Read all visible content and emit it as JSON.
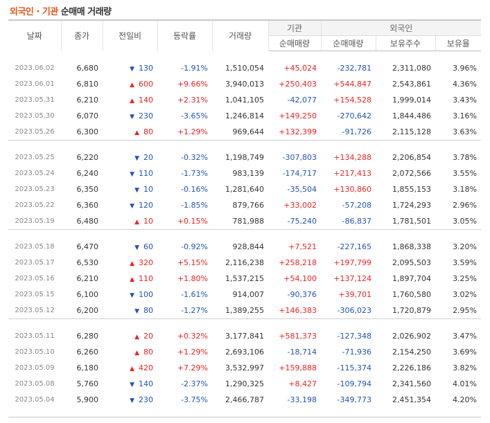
{
  "title": {
    "part1": "외국인 · 기관",
    "part2": "순매매 거래량"
  },
  "headers": {
    "date": "날짜",
    "close": "종가",
    "change": "전일비",
    "rate": "등락률",
    "volume": "거래량",
    "inst_group": "기관",
    "inst_net": "순매매량",
    "foreign_group": "외국인",
    "foreign_net": "순매매량",
    "foreign_hold": "보유주수",
    "foreign_ratio": "보유율"
  },
  "groups": [
    {
      "rows": [
        {
          "date": "2023.06.02",
          "close": "6,680",
          "dir": "down",
          "change": "130",
          "rate": "-1.91%",
          "volume": "1,510,054",
          "inst": "+45,024",
          "foreign": "-232,781",
          "hold": "2,311,080",
          "ratio": "3.96%"
        },
        {
          "date": "2023.06.01",
          "close": "6,810",
          "dir": "up",
          "change": "600",
          "rate": "+9.66%",
          "volume": "3,940,013",
          "inst": "+250,403",
          "foreign": "+544,847",
          "hold": "2,543,861",
          "ratio": "4.36%"
        },
        {
          "date": "2023.05.31",
          "close": "6,210",
          "dir": "up",
          "change": "140",
          "rate": "+2.31%",
          "volume": "1,041,105",
          "inst": "-42,077",
          "foreign": "+154,528",
          "hold": "1,999,014",
          "ratio": "3.43%"
        },
        {
          "date": "2023.05.30",
          "close": "6,070",
          "dir": "down",
          "change": "230",
          "rate": "-3.65%",
          "volume": "1,246,814",
          "inst": "+149,250",
          "foreign": "-270,642",
          "hold": "1,844,486",
          "ratio": "3.16%"
        },
        {
          "date": "2023.05.26",
          "close": "6,300",
          "dir": "up",
          "change": "80",
          "rate": "+1.29%",
          "volume": "969,644",
          "inst": "+132,399",
          "foreign": "-91,726",
          "hold": "2,115,128",
          "ratio": "3.63%"
        }
      ]
    },
    {
      "rows": [
        {
          "date": "2023.05.25",
          "close": "6,220",
          "dir": "down",
          "change": "20",
          "rate": "-0.32%",
          "volume": "1,198,749",
          "inst": "-307,803",
          "foreign": "+134,288",
          "hold": "2,206,854",
          "ratio": "3.78%"
        },
        {
          "date": "2023.05.24",
          "close": "6,240",
          "dir": "down",
          "change": "110",
          "rate": "-1.73%",
          "volume": "983,139",
          "inst": "-174,717",
          "foreign": "+217,413",
          "hold": "2,072,566",
          "ratio": "3.55%"
        },
        {
          "date": "2023.05.23",
          "close": "6,350",
          "dir": "down",
          "change": "10",
          "rate": "-0.16%",
          "volume": "1,281,640",
          "inst": "-35,504",
          "foreign": "+130,860",
          "hold": "1,855,153",
          "ratio": "3.18%"
        },
        {
          "date": "2023.05.22",
          "close": "6,360",
          "dir": "down",
          "change": "120",
          "rate": "-1.85%",
          "volume": "879,766",
          "inst": "+33,002",
          "foreign": "-57,208",
          "hold": "1,724,293",
          "ratio": "2.96%"
        },
        {
          "date": "2023.05.19",
          "close": "6,480",
          "dir": "up",
          "change": "10",
          "rate": "+0.15%",
          "volume": "781,988",
          "inst": "-75,240",
          "foreign": "-86,837",
          "hold": "1,781,501",
          "ratio": "3.05%"
        }
      ]
    },
    {
      "rows": [
        {
          "date": "2023.05.18",
          "close": "6,470",
          "dir": "down",
          "change": "60",
          "rate": "-0.92%",
          "volume": "928,844",
          "inst": "+7,521",
          "foreign": "-227,165",
          "hold": "1,868,338",
          "ratio": "3.20%"
        },
        {
          "date": "2023.05.17",
          "close": "6,530",
          "dir": "up",
          "change": "320",
          "rate": "+5.15%",
          "volume": "2,116,238",
          "inst": "+258,218",
          "foreign": "+197,799",
          "hold": "2,095,503",
          "ratio": "3.59%"
        },
        {
          "date": "2023.05.16",
          "close": "6,210",
          "dir": "up",
          "change": "110",
          "rate": "+1.80%",
          "volume": "1,537,215",
          "inst": "+54,100",
          "foreign": "+137,124",
          "hold": "1,897,704",
          "ratio": "3.25%"
        },
        {
          "date": "2023.05.15",
          "close": "6,100",
          "dir": "down",
          "change": "100",
          "rate": "-1.61%",
          "volume": "914,007",
          "inst": "-90,376",
          "foreign": "+39,701",
          "hold": "1,760,580",
          "ratio": "3.02%"
        },
        {
          "date": "2023.05.12",
          "close": "6,200",
          "dir": "down",
          "change": "80",
          "rate": "-1.27%",
          "volume": "1,389,255",
          "inst": "+146,383",
          "foreign": "-306,023",
          "hold": "1,720,879",
          "ratio": "2.95%"
        }
      ]
    },
    {
      "rows": [
        {
          "date": "2023.05.11",
          "close": "6,280",
          "dir": "up",
          "change": "20",
          "rate": "+0.32%",
          "volume": "3,177,841",
          "inst": "+581,373",
          "foreign": "-127,348",
          "hold": "2,026,902",
          "ratio": "3.47%"
        },
        {
          "date": "2023.05.10",
          "close": "6,260",
          "dir": "up",
          "change": "80",
          "rate": "+1.29%",
          "volume": "2,693,106",
          "inst": "-18,714",
          "foreign": "-71,936",
          "hold": "2,154,250",
          "ratio": "3.69%"
        },
        {
          "date": "2023.05.09",
          "close": "6,180",
          "dir": "up",
          "change": "420",
          "rate": "+7.29%",
          "volume": "3,532,997",
          "inst": "+159,888",
          "foreign": "-115,374",
          "hold": "2,226,186",
          "ratio": "3.82%"
        },
        {
          "date": "2023.05.08",
          "close": "5,760",
          "dir": "down",
          "change": "140",
          "rate": "-2.37%",
          "volume": "1,290,325",
          "inst": "+8,427",
          "foreign": "-109,794",
          "hold": "2,341,560",
          "ratio": "4.01%"
        },
        {
          "date": "2023.05.04",
          "close": "5,900",
          "dir": "down",
          "change": "230",
          "rate": "-3.75%",
          "volume": "2,466,787",
          "inst": "-33,198",
          "foreign": "-349,773",
          "hold": "2,451,354",
          "ratio": "4.20%"
        }
      ]
    }
  ],
  "colors": {
    "up": "#ee2222",
    "down": "#2252b8",
    "title_accent": "#e4561a"
  },
  "icons": {
    "up": "triangle-up-icon",
    "down": "triangle-down-icon"
  }
}
